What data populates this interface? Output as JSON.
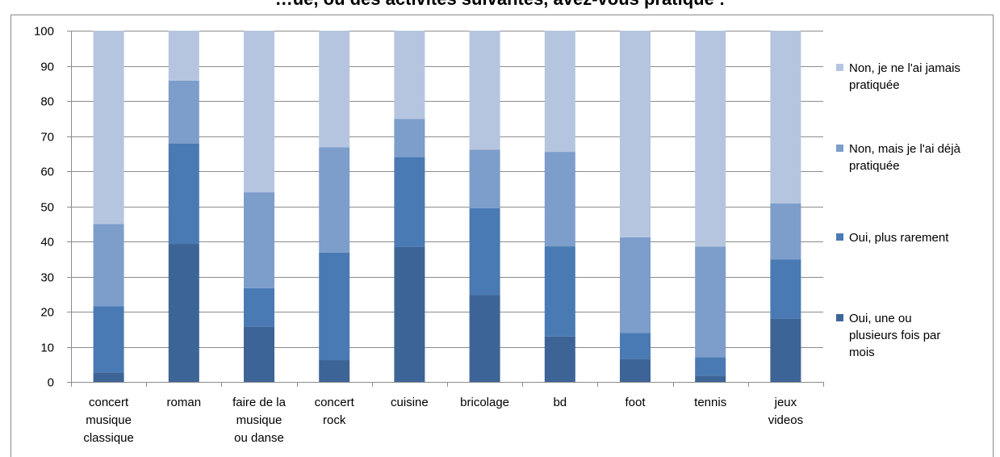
{
  "chart_data": {
    "type": "bar",
    "stacked": true,
    "title": "…ue, ou des activités suivantes, avez-vous pratiqué :",
    "xlabel": "",
    "ylabel": "",
    "ylim": [
      0,
      100
    ],
    "yticks": [
      0,
      10,
      20,
      30,
      40,
      50,
      60,
      70,
      80,
      90,
      100
    ],
    "grid": true,
    "legend_position": "right",
    "categories": [
      "concert musique classique",
      "roman",
      "faire de la musique ou danse",
      "concert rock",
      "cuisine",
      "bricolage",
      "bd",
      "foot",
      "tennis",
      "jeux videos"
    ],
    "category_labels": [
      [
        "concert",
        "musique",
        "classique"
      ],
      [
        "roman"
      ],
      [
        "faire de la",
        "musique",
        "ou danse"
      ],
      [
        "concert",
        "rock"
      ],
      [
        "cuisine"
      ],
      [
        "bricolage"
      ],
      [
        "bd"
      ],
      [
        "foot"
      ],
      [
        "tennis"
      ],
      [
        "jeux",
        "videos"
      ]
    ],
    "series": [
      {
        "name": "Oui, une ou plusieurs fois par mois",
        "legend_lines": [
          "Oui, une ou",
          "plusieurs fois par",
          "mois"
        ],
        "color": "#3d6497",
        "values": [
          2.7,
          39.3,
          15.8,
          6.2,
          38.4,
          24.8,
          12.9,
          6.6,
          1.8,
          18.1
        ]
      },
      {
        "name": "Oui, plus rarement",
        "legend_lines": [
          "Oui, plus rarement"
        ],
        "color": "#4a7ab3",
        "values": [
          18.8,
          28.6,
          10.9,
          30.6,
          25.6,
          24.7,
          25.7,
          7.3,
          5.2,
          16.8
        ]
      },
      {
        "name": "Non, mais je l'ai déjà pratiquée",
        "legend_lines": [
          "Non, mais je l'ai déjà",
          "pratiquée"
        ],
        "color": "#7d9dcb",
        "values": [
          23.5,
          17.9,
          27.3,
          30.0,
          10.9,
          16.6,
          26.9,
          27.3,
          31.5,
          15.9
        ]
      },
      {
        "name": "Non, je ne l'ai jamais pratiquée",
        "legend_lines": [
          "Non, je ne l'ai jamais",
          "pratiquée"
        ],
        "color": "#b6c5df",
        "values": [
          55.0,
          14.2,
          46.0,
          33.2,
          25.1,
          33.9,
          34.5,
          58.8,
          61.5,
          49.2
        ]
      }
    ]
  }
}
